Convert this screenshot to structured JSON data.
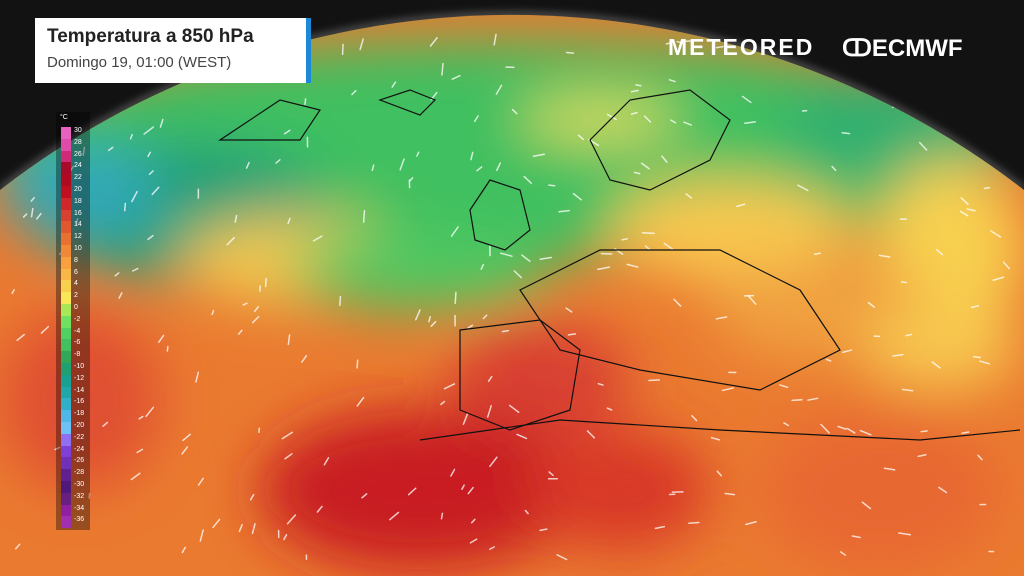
{
  "title": {
    "heading": "Temperatura a 850 hPa",
    "subtitle": "Domingo 19, 01:00 (WEST)"
  },
  "brands": {
    "meteored": "METEORED",
    "ecmwf": "ECMWF"
  },
  "legend": {
    "unit": "°C",
    "values": [
      "30",
      "28",
      "26",
      "24",
      "22",
      "20",
      "18",
      "16",
      "14",
      "12",
      "10",
      "8",
      "6",
      "4",
      "2",
      "0",
      "-2",
      "-4",
      "-6",
      "-8",
      "-10",
      "-12",
      "-14",
      "-16",
      "-18",
      "-20",
      "-22",
      "-24",
      "-26",
      "-28",
      "-30",
      "-32",
      "-34",
      "-36"
    ],
    "colors": [
      "#e860c0",
      "#e04aa8",
      "#d02a78",
      "#a80a2a",
      "#b00a20",
      "#c01020",
      "#d02828",
      "#d84030",
      "#e05830",
      "#e87030",
      "#f08838",
      "#f8a040",
      "#f8b848",
      "#f8d050",
      "#f8e858",
      "#a8e858",
      "#70e060",
      "#50d060",
      "#40c060",
      "#30a858",
      "#20a070",
      "#18a090",
      "#20a8a8",
      "#30b0c8",
      "#50b8e8",
      "#70c0f8",
      "#9070f0",
      "#8040d8",
      "#7030b8",
      "#602090",
      "#501878",
      "#682080",
      "#9020a0",
      "#a030b0"
    ]
  }
}
